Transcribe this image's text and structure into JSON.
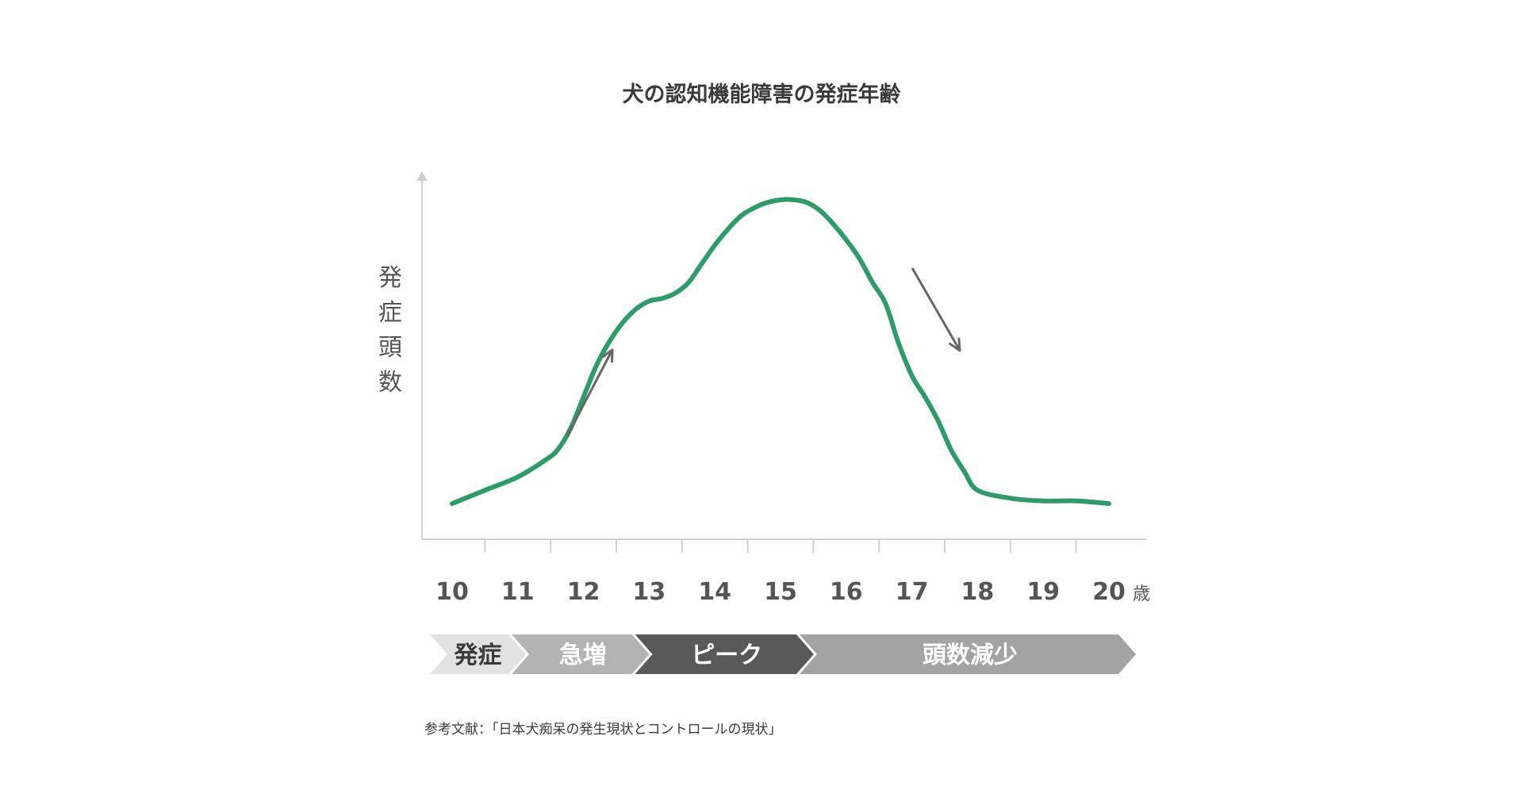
{
  "chart_data": {
    "type": "line",
    "title": "犬の認知機能障害の発症年齢",
    "ylabel": "発症頭数",
    "x_unit": "歳",
    "x_ticks": [
      "10",
      "11",
      "12",
      "13",
      "14",
      "15",
      "16",
      "17",
      "18",
      "19",
      "20"
    ],
    "y_ticks_shown": false,
    "grid": false,
    "legend": "none",
    "line_color": "#2e9b6a",
    "series": [
      {
        "x": [
          10.0,
          10.5,
          11.0,
          11.4,
          11.6,
          11.8,
          12.0,
          12.2,
          12.4,
          12.6,
          12.8,
          13.0,
          13.2,
          13.4,
          13.6,
          13.8,
          14.0,
          14.2,
          14.4,
          14.6,
          14.8,
          15.0,
          15.2,
          15.4,
          15.6,
          15.8,
          16.0,
          16.2,
          16.4,
          16.6,
          16.8,
          17.0,
          17.2,
          17.4,
          17.6,
          17.8,
          18.0,
          18.5,
          19.0,
          19.5,
          20.0
        ],
        "y": [
          0.0,
          0.05,
          0.1,
          0.16,
          0.2,
          0.28,
          0.4,
          0.52,
          0.61,
          0.68,
          0.73,
          0.76,
          0.77,
          0.79,
          0.83,
          0.9,
          0.97,
          1.03,
          1.08,
          1.11,
          1.13,
          1.14,
          1.14,
          1.13,
          1.1,
          1.05,
          0.99,
          0.92,
          0.83,
          0.75,
          0.6,
          0.48,
          0.4,
          0.31,
          0.2,
          0.12,
          0.05,
          0.02,
          0.01,
          0.01,
          0.0
        ]
      }
    ],
    "phases": [
      {
        "label": "発症",
        "start": 10.0,
        "end": 11.4,
        "color": "#e2e2e2",
        "text_color": "#3a3a3a"
      },
      {
        "label": "急増",
        "start": 11.4,
        "end": 13.2,
        "color": "#b3b3b3",
        "text_color": "#ffffff"
      },
      {
        "label": "ピーク",
        "start": 13.2,
        "end": 15.6,
        "color": "#595959",
        "text_color": "#ffffff"
      },
      {
        "label": "頭数減少",
        "start": 15.6,
        "end": 20.3,
        "color": "#a3a3a3",
        "text_color": "#ffffff"
      }
    ],
    "arrows": [
      {
        "direction": "up"
      },
      {
        "direction": "down"
      }
    ]
  },
  "footnote": "参考文献：「日本犬痴呆の発生現状とコントロールの現状」"
}
